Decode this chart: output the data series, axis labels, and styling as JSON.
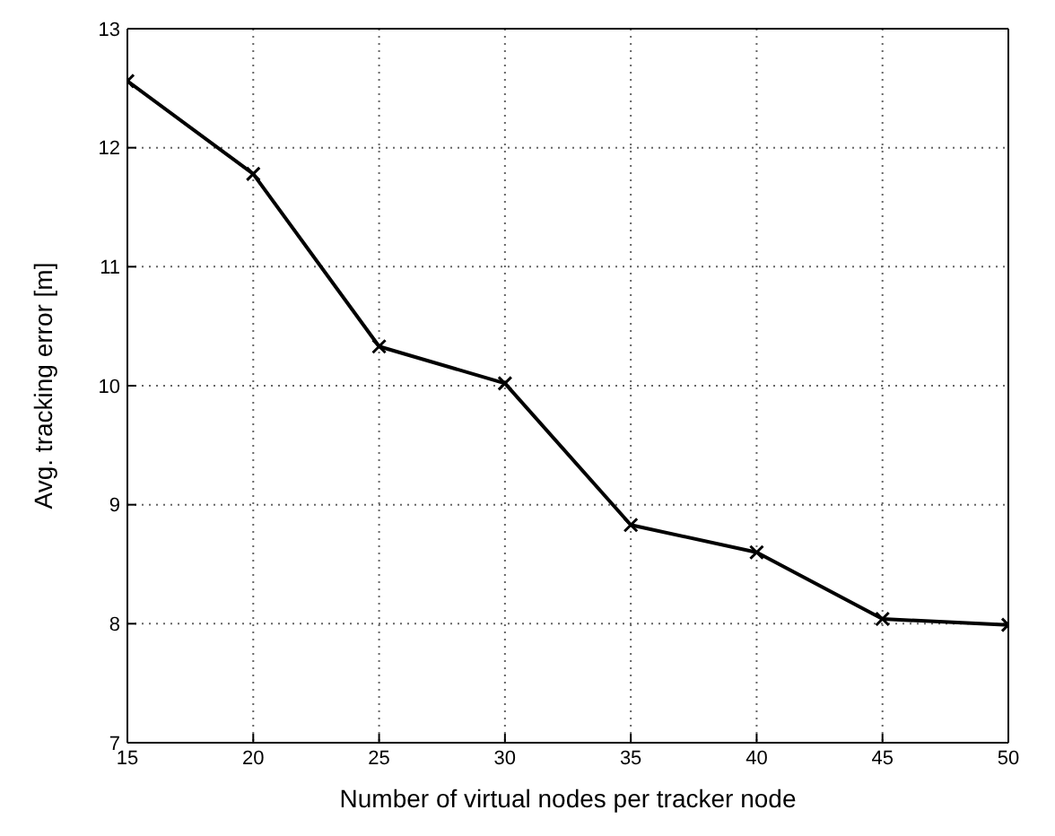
{
  "chart_data": {
    "type": "line",
    "xlabel": "Number of virtual nodes per tracker node",
    "ylabel": "Avg. tracking error [m]",
    "x": [
      15,
      20,
      25,
      30,
      35,
      40,
      45,
      50
    ],
    "series": [
      {
        "color": "#000000",
        "values": [
          12.56,
          11.78,
          10.33,
          10.02,
          8.83,
          8.6,
          8.04,
          7.99
        ]
      }
    ],
    "xlim": [
      15,
      50
    ],
    "xticks": [
      15,
      20,
      25,
      30,
      35,
      40,
      45,
      50
    ],
    "ylim": [
      7,
      13
    ],
    "yticks": [
      7,
      8,
      9,
      10,
      11,
      12,
      13
    ],
    "grid": true,
    "marker": "cross",
    "line_style": "solid",
    "legend": false
  }
}
